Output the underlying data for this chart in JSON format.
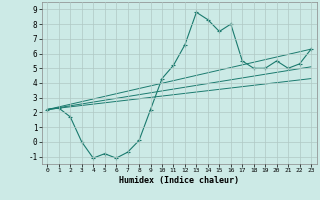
{
  "xlabel": "Humidex (Indice chaleur)",
  "bg_color": "#cceae6",
  "grid_color": "#b0c8c4",
  "line_color": "#1a7a6e",
  "marker": "+",
  "xlim": [
    -0.5,
    23.5
  ],
  "ylim": [
    -1.5,
    9.5
  ],
  "xticks": [
    0,
    1,
    2,
    3,
    4,
    5,
    6,
    7,
    8,
    9,
    10,
    11,
    12,
    13,
    14,
    15,
    16,
    17,
    18,
    19,
    20,
    21,
    22,
    23
  ],
  "yticks": [
    -1,
    0,
    1,
    2,
    3,
    4,
    5,
    6,
    7,
    8,
    9
  ],
  "main_series": [
    2.2,
    2.3,
    1.7,
    0.0,
    -1.1,
    -0.8,
    -1.1,
    -0.7,
    0.1,
    2.2,
    4.3,
    5.2,
    6.6,
    8.8,
    8.3,
    7.5,
    8.0,
    5.5,
    5.0,
    5.0,
    5.5,
    5.0,
    5.3,
    6.3
  ],
  "trend_lines": [
    {
      "x0": 0,
      "y0": 2.2,
      "x1": 23,
      "y1": 6.3
    },
    {
      "x0": 0,
      "y0": 2.2,
      "x1": 23,
      "y1": 5.1
    },
    {
      "x0": 0,
      "y0": 2.2,
      "x1": 23,
      "y1": 4.3
    }
  ]
}
